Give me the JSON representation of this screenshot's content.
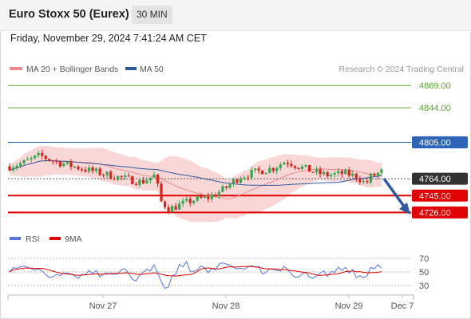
{
  "header": {
    "title": "Euro Stoxx 50 (Eurex)",
    "interval": "30 MIN",
    "datetime": "Friday, November 29, 2024 7:41:24 AM CET"
  },
  "legend": {
    "ma20_bb": "MA 20 + Bollinger Bands",
    "ma50": "MA 50",
    "copyright": "Research © 2024 Trading Central",
    "rsi": "RSI",
    "ma9": "9MA"
  },
  "colors": {
    "bull": "#2eaa4f",
    "bear": "#e0201a",
    "ma50": "#2c5aa0",
    "bb_fill": "#f8c9c9",
    "target": "#5aaa2a",
    "pivot": "#2c64b8",
    "support": "#e00000",
    "current": "#333333",
    "rsi": "#5577dd",
    "ma9": "#e00000"
  },
  "chart_data": {
    "type": "candlestick",
    "ylim": [
      4712,
      4880
    ],
    "x_labels": [
      "Nov 27",
      "Nov 28",
      "Nov 29",
      "Dec 7"
    ],
    "levels": [
      {
        "value": 4869.0,
        "label": "4869.00",
        "kind": "target"
      },
      {
        "value": 4844.0,
        "label": "4844.00",
        "kind": "target"
      },
      {
        "value": 4805.0,
        "label": "4805.00",
        "kind": "pivot"
      },
      {
        "value": 4764.0,
        "label": "4764.00",
        "kind": "current"
      },
      {
        "value": 4745.0,
        "label": "4745.00",
        "kind": "support"
      },
      {
        "value": 4726.0,
        "label": "4726.00",
        "kind": "support"
      }
    ],
    "rsi": {
      "ticks": [
        70,
        50,
        30
      ],
      "ylim": [
        18,
        82
      ]
    }
  }
}
